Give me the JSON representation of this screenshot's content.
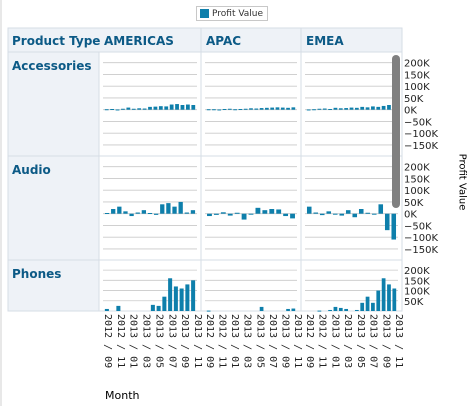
{
  "chart_data": {
    "type": "bar",
    "legend": {
      "label": "Profit Value",
      "color": "#0e7fab",
      "placement": "top-center"
    },
    "row_header_title": "Product Type",
    "columns": [
      "AMERICAS",
      "APAC",
      "EMEA"
    ],
    "rows": [
      "Accessories",
      "Audio",
      "Phones"
    ],
    "xlabel": "Month",
    "ylabel": "Profit Value",
    "x_ticks": [
      "2012 / 09",
      "2012 / 11",
      "2013 / 01",
      "2013 / 03",
      "2013 / 05",
      "2013 / 07",
      "2013 / 09",
      "2013 / 11"
    ],
    "y_axes": [
      {
        "ticks": [
          200000,
          150000,
          100000,
          50000,
          0,
          -50000,
          -100000,
          -150000
        ],
        "tick_labels": [
          "200K",
          "150K",
          "100K",
          "50K",
          "0K",
          "−50K",
          "−100K",
          "−150K"
        ],
        "ylim": [
          -180000,
          220000
        ]
      },
      {
        "ticks": [
          200000,
          150000,
          100000,
          50000,
          0,
          -50000,
          -100000,
          -150000
        ],
        "tick_labels": [
          "200K",
          "150K",
          "100K",
          "50K",
          "0K",
          "−50K",
          "−100K",
          "−150K"
        ],
        "ylim": [
          -180000,
          220000
        ]
      },
      {
        "ticks": [
          200000,
          150000,
          100000,
          50000
        ],
        "tick_labels": [
          "200K",
          "150K",
          "100K",
          "50K"
        ],
        "ylim": [
          0,
          220000
        ]
      }
    ],
    "grid": true,
    "values": [
      [
        [
          2000,
          3000,
          1000,
          4000,
          9000,
          4000,
          6000,
          5000,
          12000,
          13000,
          15000,
          14000,
          22000,
          24000,
          20000,
          22000,
          20000
        ],
        [
          2000,
          2000,
          1000,
          3000,
          4000,
          2000,
          3000,
          4000,
          6000,
          5000,
          7000,
          8000,
          9000,
          10000,
          9000,
          8000,
          10000
        ],
        [
          1000,
          2000,
          4000,
          5000,
          3000,
          8000,
          6000,
          7000,
          9000,
          8000,
          12000,
          10000,
          14000,
          12000,
          16000,
          20000,
          18000
        ]
      ],
      [
        [
          3000,
          20000,
          30000,
          10000,
          -10000,
          5000,
          15000,
          3000,
          -5000,
          40000,
          45000,
          30000,
          50000,
          5000,
          15000
        ],
        [
          -10000,
          -5000,
          6000,
          -8000,
          4000,
          -25000,
          -2000,
          25000,
          15000,
          20000,
          18000,
          -10000,
          -20000
        ],
        [
          30000,
          5000,
          -6000,
          10000,
          -4000,
          -8000,
          15000,
          -15000,
          20000,
          4000,
          -3000,
          40000,
          -70000,
          -110000
        ]
      ],
      [
        [
          10000,
          0,
          25000,
          0,
          0,
          0,
          0,
          0,
          30000,
          25000,
          70000,
          160000,
          120000,
          110000,
          130000,
          150000
        ],
        [
          2000,
          0,
          0,
          0,
          0,
          0,
          0,
          0,
          0,
          0,
          20000,
          0,
          0,
          0,
          0,
          10000,
          12000
        ],
        [
          0,
          0,
          2000,
          0,
          5000,
          20000,
          15000,
          10000,
          0,
          5000,
          40000,
          70000,
          40000,
          100000,
          160000,
          130000,
          110000
        ]
      ]
    ]
  }
}
